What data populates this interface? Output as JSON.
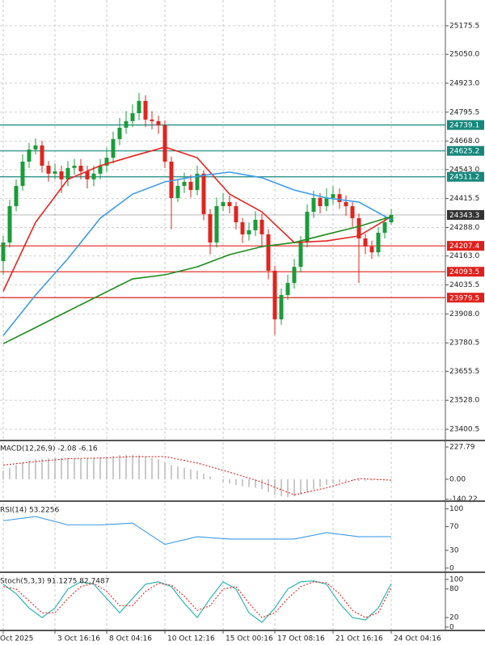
{
  "chart_data": [
    {
      "type": "candlestick",
      "categories": [
        "Oct 2025",
        null,
        null,
        null,
        null,
        null,
        null,
        null,
        "3 Oct 16:16",
        null,
        null,
        null,
        null,
        null,
        null,
        null,
        "8 Oct 04:16",
        null,
        null,
        null,
        null,
        null,
        null,
        null,
        null,
        "10 Oct 12:16",
        null,
        null,
        null,
        null,
        null,
        null,
        null,
        null,
        "15 Oct 00:16",
        null,
        null,
        null,
        null,
        null,
        null,
        null,
        "17 Oct 08:16",
        null,
        null,
        null,
        null,
        null,
        null,
        null,
        null,
        "21 Oct 16:16",
        null,
        null,
        null,
        null,
        null,
        null,
        null,
        null,
        "24 Oct 04:16"
      ],
      "open": [
        24140,
        24222,
        24382,
        24471,
        24578,
        24631,
        24649,
        24560,
        24525,
        24535,
        24500,
        24550,
        24560,
        24535,
        24500,
        24525,
        24560,
        24595,
        24677,
        24727,
        24756,
        24791,
        24845,
        24763,
        24756,
        24738,
        24578,
        24418,
        24471,
        24489,
        24453,
        24525,
        24347,
        24222,
        24382,
        24400,
        24382,
        24311,
        24258,
        24276,
        24322,
        24258,
        24098,
        23884,
        23991,
        24044,
        24115,
        24222,
        24357,
        24418,
        24382,
        24418,
        24435,
        24400,
        24382,
        24329,
        24240,
        24204,
        24179,
        24265,
        24311
      ],
      "high": [
        24252,
        24410,
        24500,
        24610,
        24660,
        24680,
        24670,
        24580,
        24570,
        24560,
        24580,
        24590,
        24590,
        24560,
        24560,
        24590,
        24640,
        24710,
        24770,
        24800,
        24830,
        24880,
        24870,
        24800,
        24780,
        24760,
        24600,
        24500,
        24530,
        24520,
        24560,
        24540,
        24370,
        24420,
        24440,
        24430,
        24400,
        24330,
        24310,
        24360,
        24350,
        24280,
        24120,
        24020,
        24080,
        24150,
        24250,
        24390,
        24450,
        24440,
        24460,
        24470,
        24460,
        24430,
        24400,
        24350,
        24260,
        24230,
        24290,
        24340,
        24370
      ],
      "low": [
        24080,
        24200,
        24360,
        24450,
        24550,
        24610,
        24530,
        24490,
        24500,
        24440,
        24470,
        24520,
        24500,
        24460,
        24470,
        24500,
        24530,
        24570,
        24650,
        24700,
        24730,
        24760,
        24730,
        24720,
        24700,
        24550,
        24280,
        24400,
        24440,
        24420,
        24430,
        24320,
        24170,
        24200,
        24360,
        24350,
        24280,
        24220,
        24230,
        24250,
        24200,
        24060,
        23815,
        23860,
        23970,
        24020,
        24090,
        24200,
        24330,
        24350,
        24360,
        24390,
        24370,
        24340,
        24290,
        24044,
        24170,
        24150,
        24160,
        24240,
        24300
      ],
      "close": [
        24222,
        24382,
        24471,
        24578,
        24631,
        24649,
        24560,
        24525,
        24535,
        24500,
        24550,
        24560,
        24535,
        24500,
        24525,
        24560,
        24595,
        24677,
        24727,
        24756,
        24791,
        24845,
        24763,
        24756,
        24738,
        24578,
        24418,
        24471,
        24489,
        24453,
        24525,
        24347,
        24222,
        24382,
        24400,
        24382,
        24311,
        24258,
        24276,
        24322,
        24258,
        24098,
        23884,
        23991,
        24044,
        24115,
        24222,
        24357,
        24418,
        24382,
        24418,
        24435,
        24400,
        24382,
        24329,
        24240,
        24204,
        24179,
        24265,
        24311,
        24343.3
      ],
      "up_color": "#1a9c3a",
      "down_color": "#e0241f",
      "series": [
        {
          "color": "#e8231f",
          "x": [
            0,
            5,
            10,
            15,
            20,
            25,
            30,
            35,
            40,
            45,
            50,
            55,
            60
          ],
          "values": [
            24008,
            24311,
            24500,
            24560,
            24602,
            24642,
            24595,
            24435,
            24357,
            24222,
            24229,
            24251,
            24336
          ]
        },
        {
          "color": "#3d9be9",
          "x": [
            0,
            5,
            10,
            15,
            20,
            25,
            30,
            35,
            40,
            45,
            50,
            55,
            60
          ],
          "values": [
            23813,
            23991,
            24151,
            24329,
            24435,
            24489,
            24514,
            24532,
            24507,
            24453,
            24418,
            24400,
            24322
          ]
        },
        {
          "color": "#1e8c1e",
          "x": [
            0,
            5,
            10,
            15,
            20,
            25,
            30,
            35,
            40,
            45,
            50,
            55,
            60
          ],
          "values": [
            23777,
            23848,
            23920,
            23991,
            24062,
            24080,
            24115,
            24169,
            24204,
            24222,
            24258,
            24293,
            24336
          ]
        }
      ],
      "levels": [
        {
          "value": 24739.1,
          "color": "#16877c"
        },
        {
          "value": 24625.2,
          "color": "#16877c"
        },
        {
          "value": 24511.2,
          "color": "#16877c"
        },
        {
          "value": 24343.3,
          "color": "#333333"
        },
        {
          "value": 24207.4,
          "color": "#e0201b"
        },
        {
          "value": 24093.5,
          "color": "#e0201b"
        },
        {
          "value": 23979.5,
          "color": "#e0201b"
        }
      ],
      "ylim": [
        23351,
        25289
      ],
      "yticks": [
        25175.5,
        {
          "value": 25050,
          "label": "25050.0"
        },
        {
          "value": 24923,
          "label": "24923.0"
        },
        24795.5,
        {
          "value": 24668,
          "label": "24668.0"
        },
        {
          "value": 24543,
          "label": "24543.0"
        },
        24415.5,
        {
          "value": 24288,
          "label": "24288.0"
        },
        {
          "value": 24163,
          "label": "24163.0"
        },
        24035.5,
        {
          "value": 23908,
          "label": "23908.0"
        },
        23780.5,
        23655.5,
        {
          "value": 23528,
          "label": "23528.0"
        },
        23400.5
      ],
      "grid": true
    },
    {
      "type": "bar",
      "title": "MACD(12,26,9) -2.08 -6.16",
      "color": "#b8b8b8",
      "values": [
        60,
        80,
        100,
        120,
        130,
        140,
        145,
        148,
        150,
        150,
        150,
        148,
        145,
        145,
        150,
        155,
        160,
        165,
        170,
        172,
        170,
        168,
        160,
        150,
        140,
        120,
        100,
        90,
        80,
        70,
        60,
        40,
        20,
        0,
        -20,
        -30,
        -40,
        -50,
        -55,
        -60,
        -70,
        -90,
        -110,
        -120,
        -125,
        -120,
        -110,
        -90,
        -70,
        -55,
        -40,
        -30,
        -20,
        -15,
        -12,
        -12,
        -10,
        -8,
        -6,
        -4,
        -2.08
      ],
      "series": [
        {
          "color": "#e8231f",
          "dash": true,
          "x": [
            0,
            5,
            10,
            15,
            20,
            25,
            30,
            35,
            40,
            45,
            50,
            55,
            60
          ],
          "values": [
            100,
            125,
            145,
            150,
            160,
            160,
            115,
            50,
            -20,
            -110,
            -60,
            5,
            -6.16
          ]
        }
      ],
      "ylim": [
        -154,
        262
      ],
      "yticks": [
        227.79,
        {
          "value": 0,
          "label": "0.00"
        },
        -140.22
      ]
    },
    {
      "type": "line",
      "title": "RSI(14) 53.2256",
      "series": [
        {
          "color": "#3d9be9",
          "x": [
            0,
            5,
            10,
            15,
            20,
            25,
            30,
            35,
            40,
            45,
            50,
            55,
            60
          ],
          "values": [
            80,
            87,
            73,
            73,
            76,
            40,
            53,
            49,
            49,
            49,
            60,
            53,
            53.2256
          ]
        }
      ],
      "ylim": [
        -7,
        109
      ],
      "yticks": [
        100,
        70,
        30,
        0
      ]
    },
    {
      "type": "line",
      "title": "Stoch(5,3,3) 91.1275 82.7487",
      "series": [
        {
          "color": "#20b2aa",
          "x": [
            0,
            2,
            4,
            6,
            8,
            10,
            12,
            14,
            16,
            18,
            20,
            22,
            24,
            26,
            28,
            30,
            32,
            34,
            36,
            38,
            40,
            42,
            44,
            46,
            48,
            50,
            52,
            54,
            56,
            58,
            60
          ],
          "values": [
            90,
            70,
            40,
            20,
            40,
            80,
            95,
            90,
            60,
            30,
            60,
            90,
            95,
            85,
            50,
            20,
            60,
            95,
            80,
            30,
            10,
            40,
            80,
            95,
            97,
            90,
            50,
            20,
            15,
            40,
            91.1275
          ]
        },
        {
          "color": "#e8231f",
          "dash": true,
          "x": [
            0,
            2,
            4,
            6,
            8,
            10,
            12,
            14,
            16,
            18,
            20,
            22,
            24,
            26,
            28,
            30,
            32,
            34,
            36,
            38,
            40,
            42,
            44,
            46,
            48,
            50,
            52,
            54,
            56,
            58,
            60
          ],
          "values": [
            85,
            80,
            55,
            30,
            30,
            60,
            85,
            92,
            75,
            45,
            45,
            75,
            92,
            88,
            65,
            35,
            45,
            80,
            85,
            50,
            20,
            30,
            60,
            85,
            95,
            93,
            70,
            35,
            20,
            30,
            82.7487
          ]
        }
      ],
      "ylim": [
        -7,
        110
      ],
      "yticks": [
        100,
        80,
        20,
        0
      ]
    }
  ]
}
